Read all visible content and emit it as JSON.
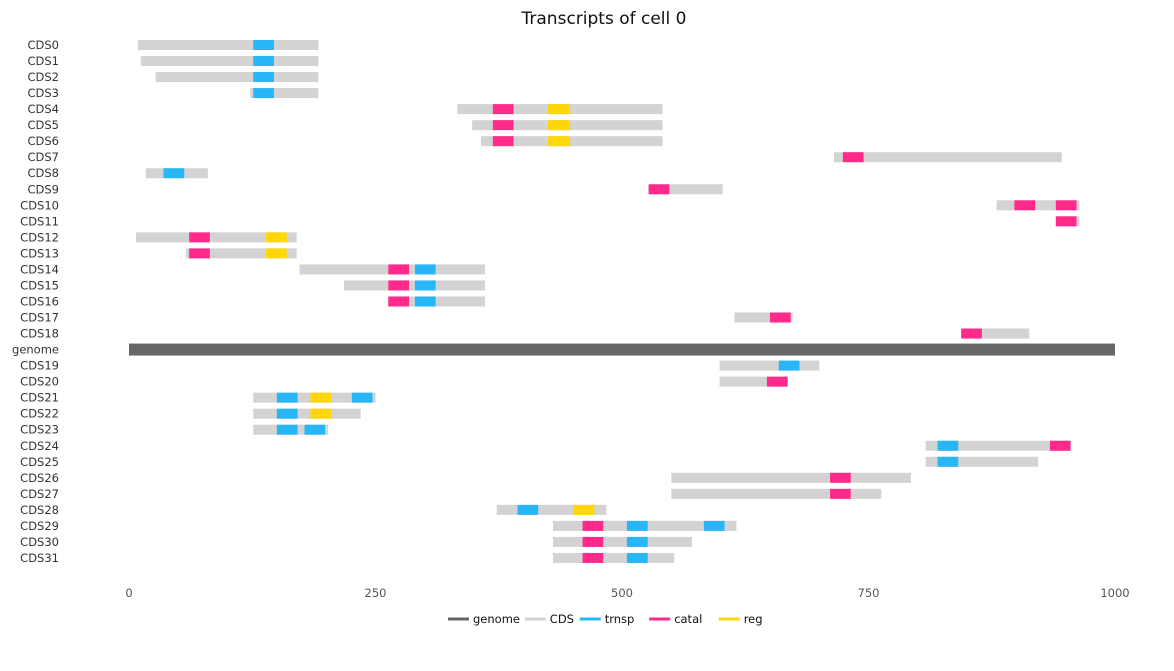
{
  "chart_data": {
    "type": "bar",
    "orientation": "horizontal-range",
    "title": "Transcripts of cell 0",
    "xlabel": "",
    "ylabel": "",
    "xlim": [
      0,
      1000
    ],
    "x_ticks": [
      0,
      250,
      500,
      750,
      1000
    ],
    "grid": false,
    "legend": {
      "placement": "bottom-center",
      "entries": [
        {
          "key": "genome",
          "label": "genome"
        },
        {
          "key": "CDS",
          "label": "CDS"
        },
        {
          "key": "trnsp",
          "label": "trnsp"
        },
        {
          "key": "catal",
          "label": "catal"
        },
        {
          "key": "reg",
          "label": "reg"
        }
      ]
    },
    "colors": {
      "genome": "#666666",
      "CDS": "#d3d3d3",
      "trnsp": "#29b6f6",
      "catal": "#ff2a8a",
      "reg": "#ffd60a"
    },
    "rows": [
      {
        "label": "CDS0",
        "start": 9,
        "end": 192,
        "domains": [
          {
            "type": "trnsp",
            "start": 126,
            "end": 147
          }
        ]
      },
      {
        "label": "CDS1",
        "start": 12,
        "end": 192,
        "domains": [
          {
            "type": "trnsp",
            "start": 126,
            "end": 147
          }
        ]
      },
      {
        "label": "CDS2",
        "start": 27,
        "end": 192,
        "domains": [
          {
            "type": "trnsp",
            "start": 126,
            "end": 147
          }
        ]
      },
      {
        "label": "CDS3",
        "start": 123,
        "end": 192,
        "domains": [
          {
            "type": "trnsp",
            "start": 126,
            "end": 147
          }
        ]
      },
      {
        "label": "CDS4",
        "start": 333,
        "end": 541,
        "domains": [
          {
            "type": "catal",
            "start": 369,
            "end": 390
          },
          {
            "type": "reg",
            "start": 425,
            "end": 447
          }
        ]
      },
      {
        "label": "CDS5",
        "start": 348,
        "end": 541,
        "domains": [
          {
            "type": "catal",
            "start": 369,
            "end": 390
          },
          {
            "type": "reg",
            "start": 425,
            "end": 447
          }
        ]
      },
      {
        "label": "CDS6",
        "start": 357,
        "end": 541,
        "domains": [
          {
            "type": "catal",
            "start": 369,
            "end": 390
          },
          {
            "type": "reg",
            "start": 425,
            "end": 447
          }
        ]
      },
      {
        "label": "CDS7",
        "start": 715,
        "end": 946,
        "domains": [
          {
            "type": "catal",
            "start": 724,
            "end": 745
          }
        ]
      },
      {
        "label": "CDS8",
        "start": 17,
        "end": 80,
        "domains": [
          {
            "type": "trnsp",
            "start": 35,
            "end": 56
          }
        ]
      },
      {
        "label": "CDS9",
        "start": 527,
        "end": 602,
        "domains": [
          {
            "type": "catal",
            "start": 527,
            "end": 548
          }
        ]
      },
      {
        "label": "CDS10",
        "start": 880,
        "end": 964,
        "domains": [
          {
            "type": "catal",
            "start": 898,
            "end": 919
          },
          {
            "type": "catal",
            "start": 940,
            "end": 961
          }
        ]
      },
      {
        "label": "CDS11",
        "start": 940,
        "end": 964,
        "domains": [
          {
            "type": "catal",
            "start": 940,
            "end": 961
          }
        ]
      },
      {
        "label": "CDS12",
        "start": 7,
        "end": 170,
        "domains": [
          {
            "type": "catal",
            "start": 61,
            "end": 82
          },
          {
            "type": "reg",
            "start": 139,
            "end": 160
          }
        ]
      },
      {
        "label": "CDS13",
        "start": 58,
        "end": 170,
        "domains": [
          {
            "type": "catal",
            "start": 61,
            "end": 82
          },
          {
            "type": "reg",
            "start": 139,
            "end": 160
          }
        ]
      },
      {
        "label": "CDS14",
        "start": 173,
        "end": 361,
        "domains": [
          {
            "type": "catal",
            "start": 263,
            "end": 284
          },
          {
            "type": "trnsp",
            "start": 290,
            "end": 311
          }
        ]
      },
      {
        "label": "CDS15",
        "start": 218,
        "end": 361,
        "domains": [
          {
            "type": "catal",
            "start": 263,
            "end": 284
          },
          {
            "type": "trnsp",
            "start": 290,
            "end": 311
          }
        ]
      },
      {
        "label": "CDS16",
        "start": 263,
        "end": 361,
        "domains": [
          {
            "type": "catal",
            "start": 263,
            "end": 284
          },
          {
            "type": "trnsp",
            "start": 290,
            "end": 311
          }
        ]
      },
      {
        "label": "CDS17",
        "start": 614,
        "end": 673,
        "domains": [
          {
            "type": "catal",
            "start": 650,
            "end": 671
          }
        ]
      },
      {
        "label": "CDS18",
        "start": 844,
        "end": 913,
        "domains": [
          {
            "type": "catal",
            "start": 844,
            "end": 865
          }
        ]
      },
      {
        "label": "genome",
        "start": 0,
        "end": 1000,
        "genome": true,
        "domains": []
      },
      {
        "label": "CDS19",
        "start": 599,
        "end": 700,
        "domains": [
          {
            "type": "trnsp",
            "start": 659,
            "end": 680
          }
        ]
      },
      {
        "label": "CDS20",
        "start": 599,
        "end": 668,
        "domains": [
          {
            "type": "catal",
            "start": 647,
            "end": 668
          }
        ]
      },
      {
        "label": "CDS21",
        "start": 126,
        "end": 250,
        "domains": [
          {
            "type": "trnsp",
            "start": 150,
            "end": 171
          },
          {
            "type": "reg",
            "start": 184,
            "end": 205
          },
          {
            "type": "trnsp",
            "start": 226,
            "end": 247
          }
        ]
      },
      {
        "label": "CDS22",
        "start": 126,
        "end": 235,
        "domains": [
          {
            "type": "trnsp",
            "start": 150,
            "end": 171
          },
          {
            "type": "reg",
            "start": 184,
            "end": 205
          }
        ]
      },
      {
        "label": "CDS23",
        "start": 126,
        "end": 202,
        "domains": [
          {
            "type": "trnsp",
            "start": 150,
            "end": 171
          },
          {
            "type": "trnsp",
            "start": 178,
            "end": 199
          }
        ]
      },
      {
        "label": "CDS24",
        "start": 808,
        "end": 955,
        "domains": [
          {
            "type": "trnsp",
            "start": 820,
            "end": 841
          },
          {
            "type": "catal",
            "start": 934,
            "end": 955
          }
        ]
      },
      {
        "label": "CDS25",
        "start": 808,
        "end": 922,
        "domains": [
          {
            "type": "trnsp",
            "start": 820,
            "end": 841
          }
        ]
      },
      {
        "label": "CDS26",
        "start": 550,
        "end": 793,
        "domains": [
          {
            "type": "catal",
            "start": 711,
            "end": 732
          }
        ]
      },
      {
        "label": "CDS27",
        "start": 550,
        "end": 763,
        "domains": [
          {
            "type": "catal",
            "start": 711,
            "end": 732
          }
        ]
      },
      {
        "label": "CDS28",
        "start": 373,
        "end": 484,
        "domains": [
          {
            "type": "trnsp",
            "start": 394,
            "end": 415
          },
          {
            "type": "reg",
            "start": 451,
            "end": 472
          }
        ]
      },
      {
        "label": "CDS29",
        "start": 430,
        "end": 616,
        "domains": [
          {
            "type": "catal",
            "start": 460,
            "end": 481
          },
          {
            "type": "trnsp",
            "start": 505,
            "end": 526
          },
          {
            "type": "trnsp",
            "start": 583,
            "end": 604
          }
        ]
      },
      {
        "label": "CDS30",
        "start": 430,
        "end": 571,
        "domains": [
          {
            "type": "catal",
            "start": 460,
            "end": 481
          },
          {
            "type": "trnsp",
            "start": 505,
            "end": 526
          }
        ]
      },
      {
        "label": "CDS31",
        "start": 430,
        "end": 553,
        "domains": [
          {
            "type": "catal",
            "start": 460,
            "end": 481
          },
          {
            "type": "trnsp",
            "start": 505,
            "end": 526
          }
        ]
      }
    ]
  }
}
